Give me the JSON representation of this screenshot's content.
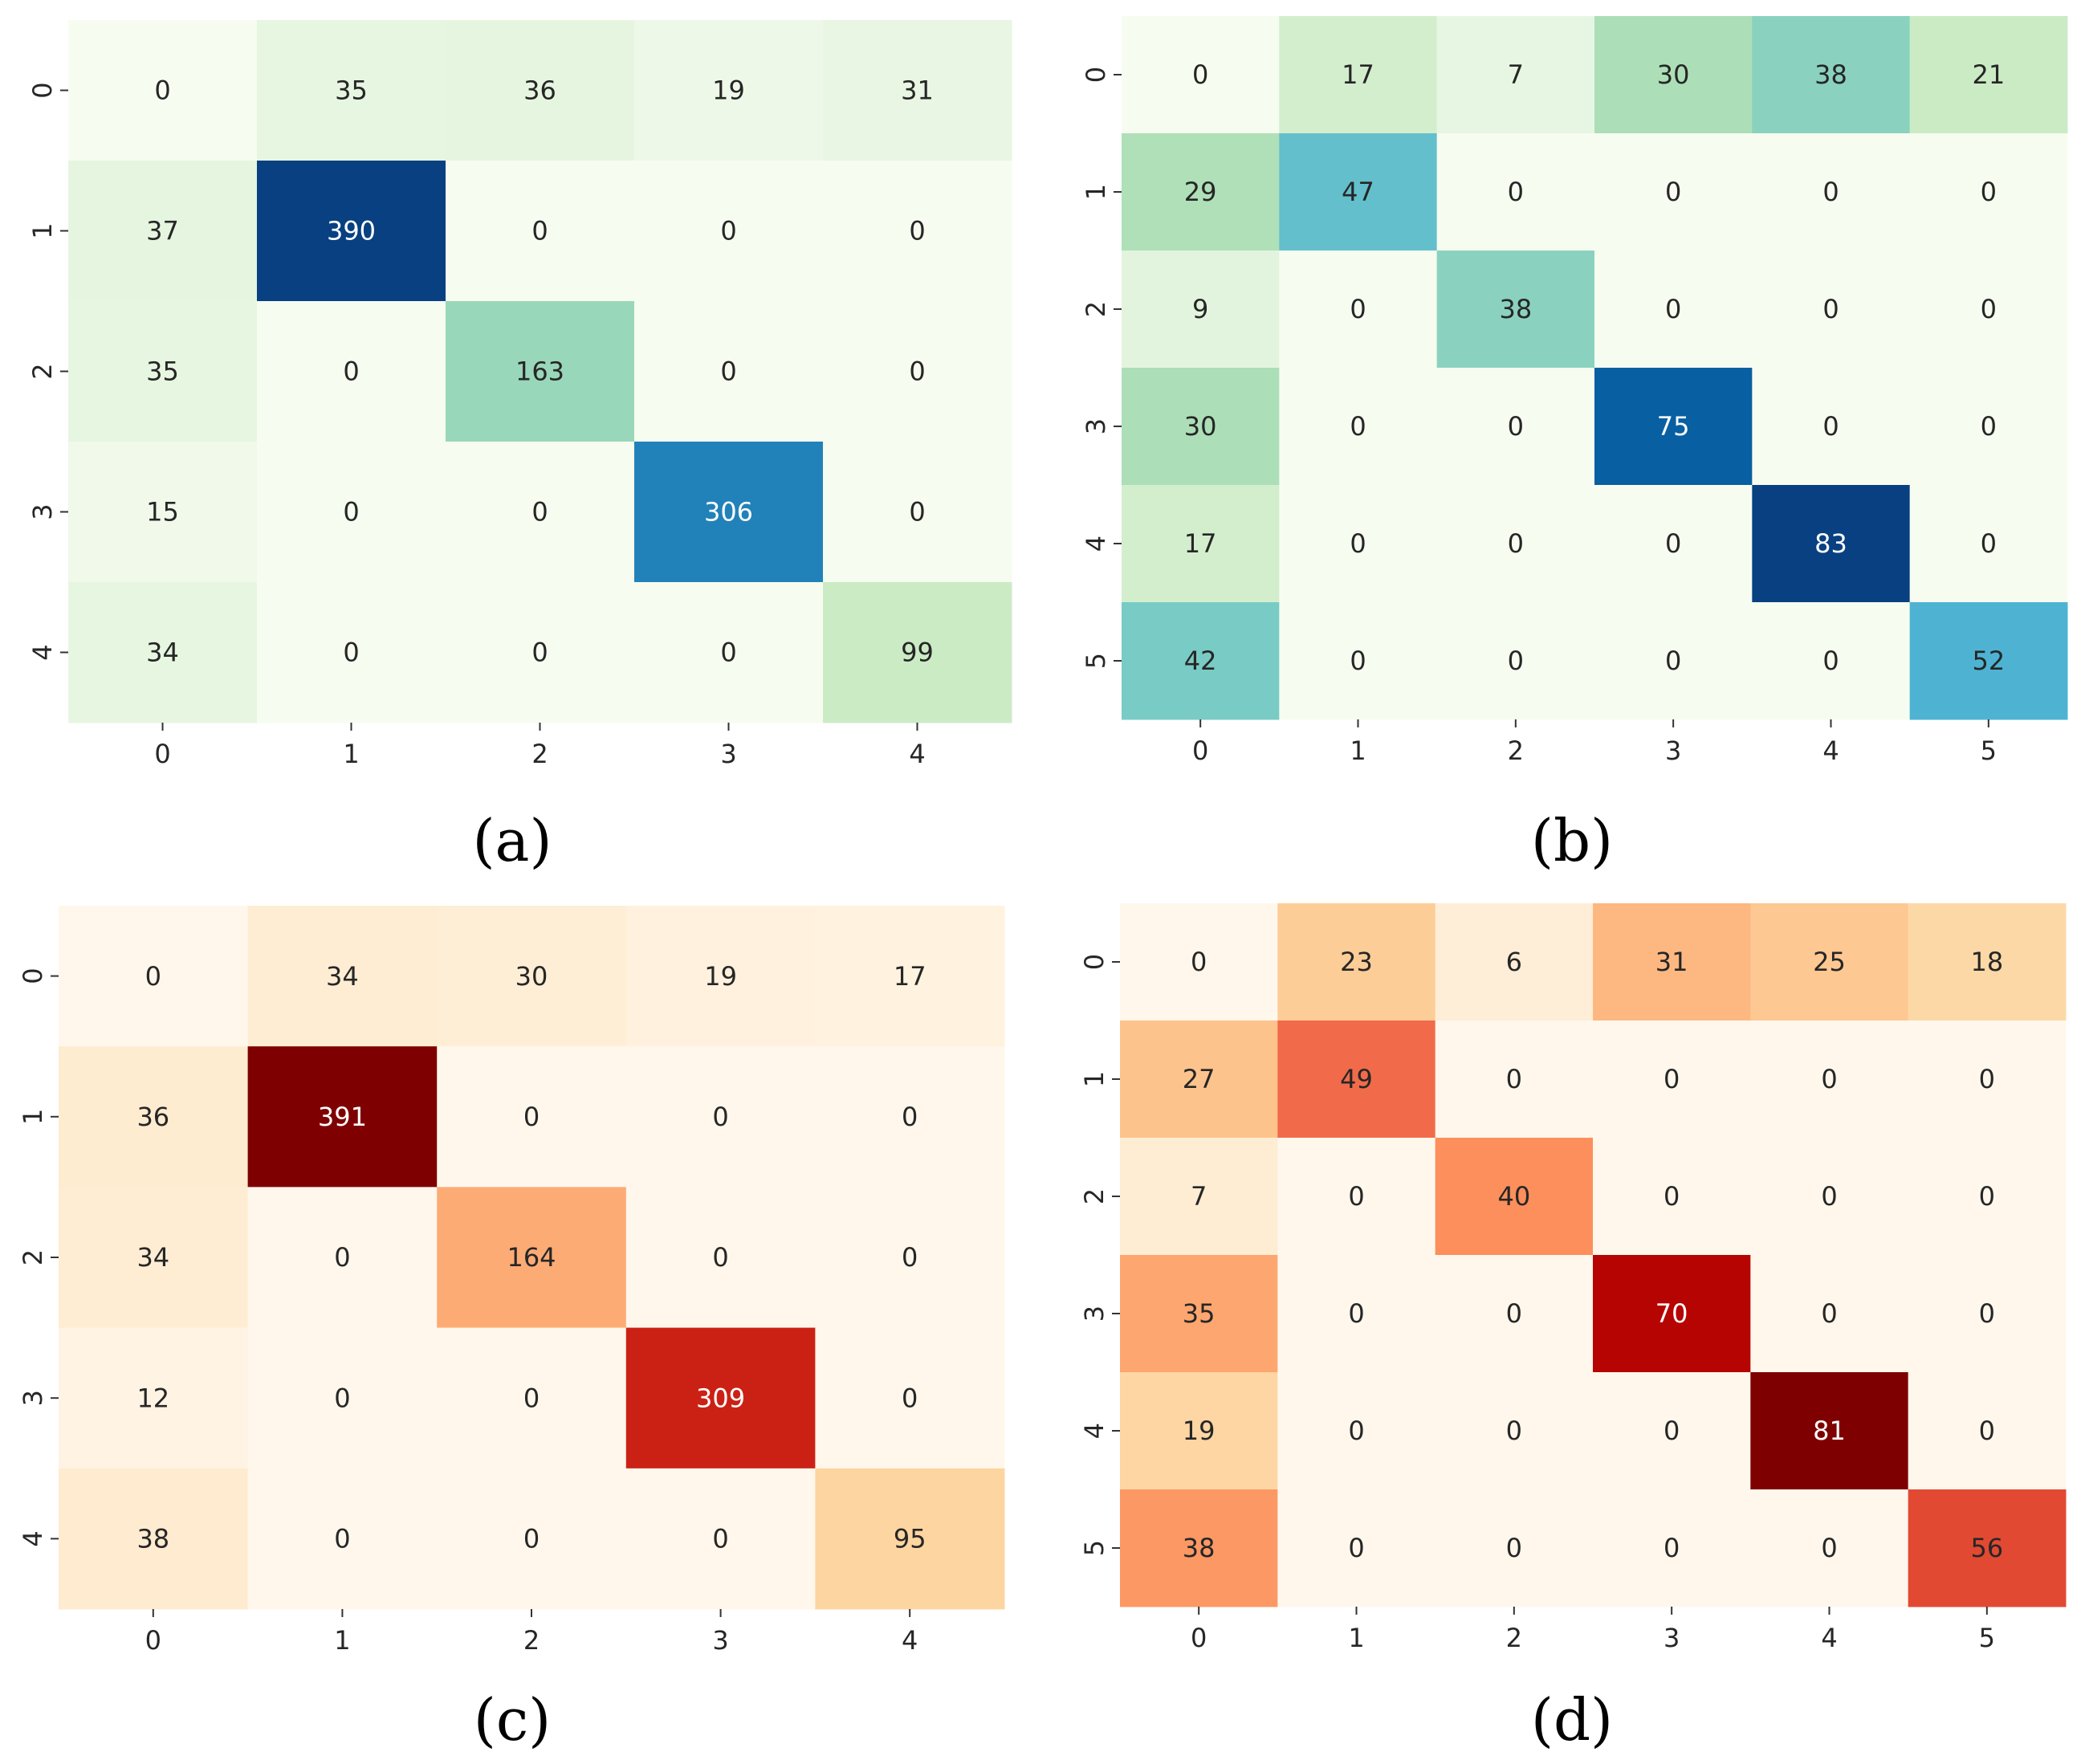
{
  "figure": {
    "captions": [
      "(a)",
      "(b)",
      "(c)",
      "(d)"
    ]
  },
  "chart_data": [
    {
      "type": "heatmap",
      "panel": "(a)",
      "colormap": "GnBu",
      "x_ticks": [
        "0",
        "1",
        "2",
        "3",
        "4"
      ],
      "y_ticks": [
        "0",
        "1",
        "2",
        "3",
        "4"
      ],
      "values": [
        [
          0,
          35,
          36,
          19,
          31
        ],
        [
          37,
          390,
          0,
          0,
          0
        ],
        [
          35,
          0,
          163,
          0,
          0
        ],
        [
          15,
          0,
          0,
          306,
          0
        ],
        [
          34,
          0,
          0,
          0,
          99
        ]
      ],
      "vmax": 390,
      "xlabel": "",
      "ylabel": "",
      "title": ""
    },
    {
      "type": "heatmap",
      "panel": "(b)",
      "colormap": "GnBu",
      "x_ticks": [
        "0",
        "1",
        "2",
        "3",
        "4",
        "5"
      ],
      "y_ticks": [
        "0",
        "1",
        "2",
        "3",
        "4",
        "5"
      ],
      "values": [
        [
          0,
          17,
          7,
          30,
          38,
          21
        ],
        [
          29,
          47,
          0,
          0,
          0,
          0
        ],
        [
          9,
          0,
          38,
          0,
          0,
          0
        ],
        [
          30,
          0,
          0,
          75,
          0,
          0
        ],
        [
          17,
          0,
          0,
          0,
          83,
          0
        ],
        [
          42,
          0,
          0,
          0,
          0,
          52
        ]
      ],
      "vmax": 83,
      "xlabel": "",
      "ylabel": "",
      "title": ""
    },
    {
      "type": "heatmap",
      "panel": "(c)",
      "colormap": "OrRd",
      "x_ticks": [
        "0",
        "1",
        "2",
        "3",
        "4"
      ],
      "y_ticks": [
        "0",
        "1",
        "2",
        "3",
        "4"
      ],
      "values": [
        [
          0,
          34,
          30,
          19,
          17
        ],
        [
          36,
          391,
          0,
          0,
          0
        ],
        [
          34,
          0,
          164,
          0,
          0
        ],
        [
          12,
          0,
          0,
          309,
          0
        ],
        [
          38,
          0,
          0,
          0,
          95
        ]
      ],
      "vmax": 391,
      "xlabel": "",
      "ylabel": "",
      "title": ""
    },
    {
      "type": "heatmap",
      "panel": "(d)",
      "colormap": "OrRd",
      "x_ticks": [
        "0",
        "1",
        "2",
        "3",
        "4",
        "5"
      ],
      "y_ticks": [
        "0",
        "1",
        "2",
        "3",
        "4",
        "5"
      ],
      "values": [
        [
          0,
          23,
          6,
          31,
          25,
          18
        ],
        [
          27,
          49,
          0,
          0,
          0,
          0
        ],
        [
          7,
          0,
          40,
          0,
          0,
          0
        ],
        [
          35,
          0,
          0,
          70,
          0,
          0
        ],
        [
          19,
          0,
          0,
          0,
          81,
          0
        ],
        [
          38,
          0,
          0,
          0,
          0,
          56
        ]
      ],
      "vmax": 81,
      "xlabel": "",
      "ylabel": "",
      "title": ""
    }
  ],
  "colormaps": {
    "GnBu": [
      "#f7fcf0",
      "#e0f3db",
      "#ccebc5",
      "#a8ddb5",
      "#7bccc4",
      "#4eb3d3",
      "#2b8cbe",
      "#0868ac",
      "#084081"
    ],
    "OrRd": [
      "#fff7ec",
      "#fee8c8",
      "#fdd49e",
      "#fdbb84",
      "#fc8d59",
      "#ef6548",
      "#d7301f",
      "#b30000",
      "#7f0000"
    ]
  }
}
